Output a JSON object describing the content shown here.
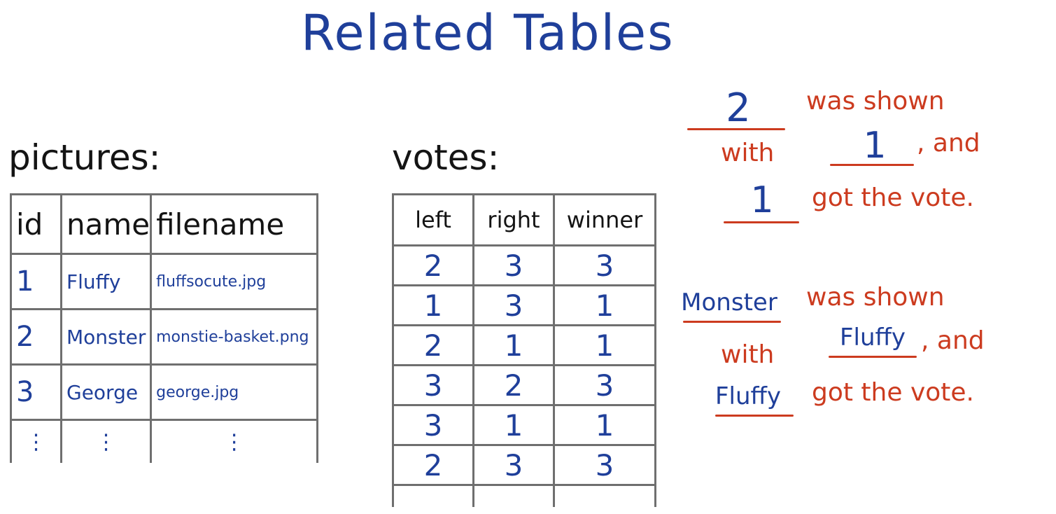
{
  "title": "Related Tables",
  "pictures": {
    "label": "pictures:",
    "headers": [
      "id",
      "name",
      "filename"
    ],
    "rows": [
      [
        "1",
        "Fluffy",
        "fluffsocute.jpg"
      ],
      [
        "2",
        "Monster",
        "monstie-basket.png"
      ],
      [
        "3",
        "George",
        "george.jpg"
      ]
    ],
    "continuation": "⋮"
  },
  "votes": {
    "label": "votes:",
    "headers": [
      "left",
      "right",
      "winner"
    ],
    "rows": [
      [
        "2",
        "3",
        "3"
      ],
      [
        "1",
        "3",
        "1"
      ],
      [
        "2",
        "1",
        "1"
      ],
      [
        "3",
        "2",
        "3"
      ],
      [
        "3",
        "1",
        "1"
      ],
      [
        "2",
        "3",
        "3"
      ]
    ]
  },
  "note1": {
    "blank1": "2",
    "text1": "was shown",
    "text2": "with",
    "blank2": "1",
    "text3": ", and",
    "blank3": "1",
    "text4": "got the vote."
  },
  "note2": {
    "blank1": "Monster",
    "text1": "was shown",
    "text2": "with",
    "blank2": "Fluffy",
    "text3": ", and",
    "blank3": "Fluffy",
    "text4": "got the vote."
  },
  "colors": {
    "ink_blue": "#1f3f9a",
    "ink_black": "#141414",
    "ink_red": "#cc3b1f",
    "grid": "#6f6f6f"
  }
}
